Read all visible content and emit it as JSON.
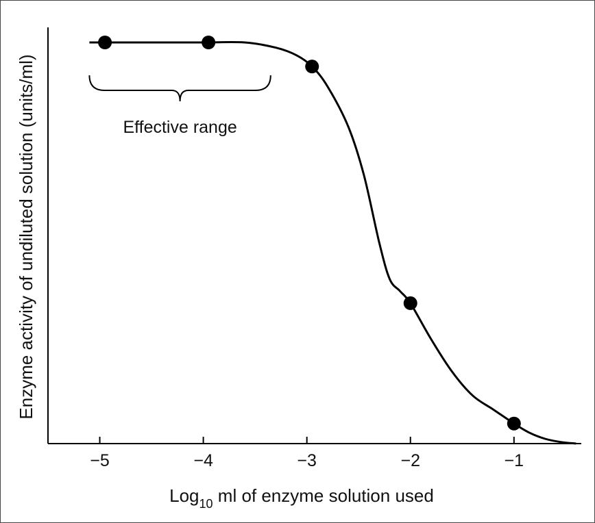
{
  "chart_data": {
    "type": "line",
    "title": "",
    "xlabel": {
      "prefix": "Log",
      "subscript": "10",
      "suffix": " ml of enzyme solution used"
    },
    "ylabel": "Enzyme activity of undiluted solution (units/ml)",
    "x_ticks": [
      -5,
      -4,
      -3,
      -2,
      -1
    ],
    "x_tick_labels": [
      "−5",
      "−4",
      "−3",
      "−2",
      "−1"
    ],
    "xlim": [
      -5.5,
      -0.35
    ],
    "ylim": [
      0,
      100
    ],
    "grid": false,
    "points": [
      {
        "x": -4.95,
        "y": 100
      },
      {
        "x": -3.95,
        "y": 100
      },
      {
        "x": -2.95,
        "y": 94
      },
      {
        "x": -2.0,
        "y": 35
      },
      {
        "x": -1.0,
        "y": 5
      }
    ],
    "curve": {
      "x": [
        -5.1,
        -4.5,
        -4.0,
        -3.6,
        -3.3,
        -3.1,
        -2.95,
        -2.8,
        -2.6,
        -2.45,
        -2.3,
        -2.2,
        -2.1,
        -2.0,
        -1.8,
        -1.6,
        -1.4,
        -1.2,
        -1.0,
        -0.85,
        -0.7,
        -0.55,
        -0.4
      ],
      "y": [
        100,
        100,
        100,
        100,
        98.7,
        96.8,
        94,
        89,
        79,
        67,
        50,
        41,
        38,
        35,
        26,
        18,
        12,
        8.5,
        5,
        2.7,
        1.2,
        0.4,
        0
      ]
    },
    "annotations": [
      {
        "text": "Effective range",
        "x_range": [
          -5.1,
          -3.35
        ]
      }
    ]
  }
}
